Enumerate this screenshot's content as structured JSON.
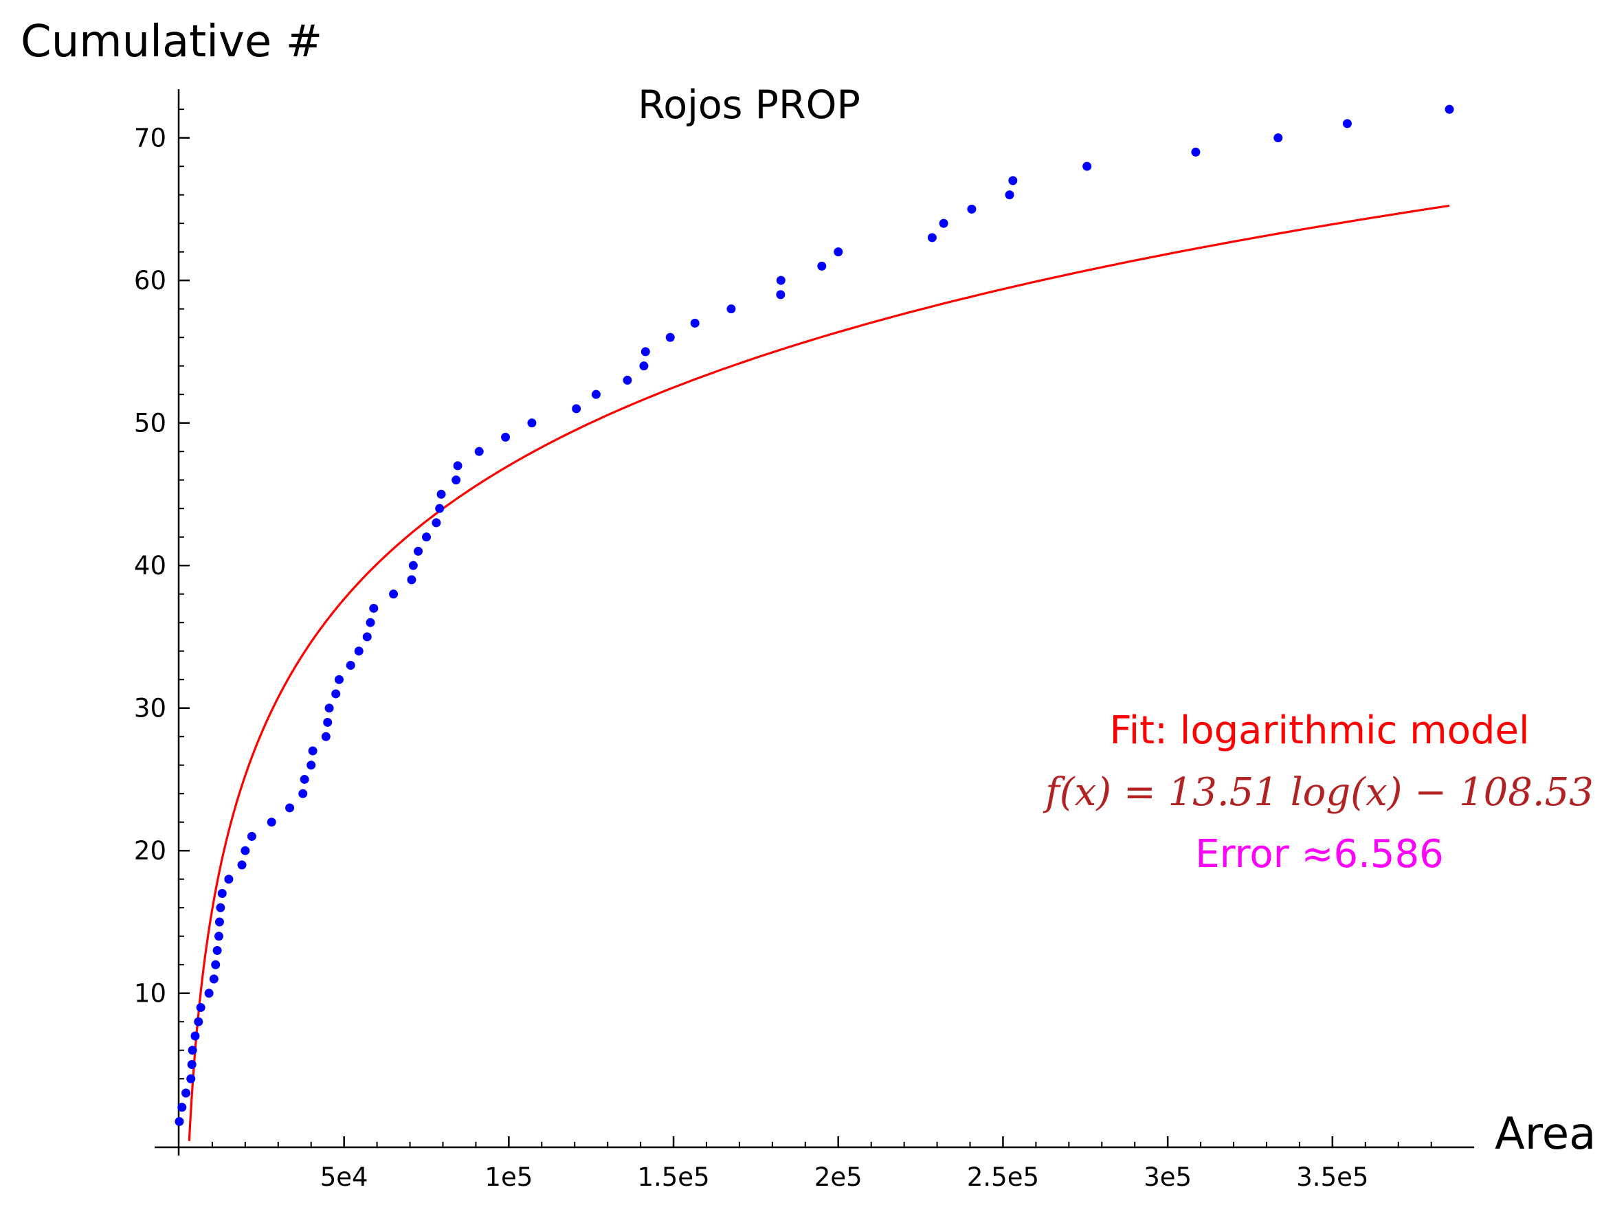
{
  "chart_data": {
    "type": "scatter",
    "title": "Rojos PROP",
    "xlabel": "Area",
    "ylabel": "Cumulative #",
    "xlim": [
      -7500,
      393000
    ],
    "ylim": [
      -1,
      73.5
    ],
    "x_ticks": [
      {
        "value": 50000,
        "label": "5e4"
      },
      {
        "value": 100000,
        "label": "1e5"
      },
      {
        "value": 150000,
        "label": "1.5e5"
      },
      {
        "value": 200000,
        "label": "2e5"
      },
      {
        "value": 250000,
        "label": "2.5e5"
      },
      {
        "value": 300000,
        "label": "3e5"
      },
      {
        "value": 350000,
        "label": "3.5e5"
      }
    ],
    "y_ticks": [
      {
        "value": 10,
        "label": "10"
      },
      {
        "value": 20,
        "label": "20"
      },
      {
        "value": 30,
        "label": "30"
      },
      {
        "value": 40,
        "label": "40"
      },
      {
        "value": 50,
        "label": "50"
      },
      {
        "value": 60,
        "label": "60"
      },
      {
        "value": 70,
        "label": "70"
      }
    ],
    "x_minor_step": 10000,
    "y_minor_step": 2,
    "grid": false,
    "series": [
      {
        "kind": "scatter",
        "color": "#0000ff",
        "points": [
          [
            0,
            1
          ],
          [
            800,
            2
          ],
          [
            2000,
            3
          ],
          [
            3500,
            4
          ],
          [
            3800,
            5
          ],
          [
            4000,
            6
          ],
          [
            4800,
            7
          ],
          [
            5800,
            8
          ],
          [
            6500,
            9
          ],
          [
            9000,
            10
          ],
          [
            10500,
            11
          ],
          [
            11000,
            12
          ],
          [
            11500,
            13
          ],
          [
            12000,
            14
          ],
          [
            12200,
            15
          ],
          [
            12500,
            16
          ],
          [
            13000,
            17
          ],
          [
            15000,
            18
          ],
          [
            19000,
            19
          ],
          [
            20000,
            20
          ],
          [
            22000,
            21
          ],
          [
            28000,
            22
          ],
          [
            33500,
            23
          ],
          [
            37500,
            24
          ],
          [
            38000,
            25
          ],
          [
            40000,
            26
          ],
          [
            40500,
            27
          ],
          [
            44500,
            28
          ],
          [
            45000,
            29
          ],
          [
            45500,
            30
          ],
          [
            47500,
            31
          ],
          [
            48500,
            32
          ],
          [
            52000,
            33
          ],
          [
            54500,
            34
          ],
          [
            57000,
            35
          ],
          [
            58000,
            36
          ],
          [
            59000,
            37
          ],
          [
            65000,
            38
          ],
          [
            70500,
            39
          ],
          [
            71000,
            40
          ],
          [
            72500,
            41
          ],
          [
            75000,
            42
          ],
          [
            78000,
            43
          ],
          [
            79000,
            44
          ],
          [
            79500,
            45
          ],
          [
            84000,
            46
          ],
          [
            84500,
            47
          ],
          [
            91000,
            48
          ],
          [
            99000,
            49
          ],
          [
            107000,
            50
          ],
          [
            120500,
            51
          ],
          [
            126500,
            52
          ],
          [
            136000,
            53
          ],
          [
            141000,
            54
          ],
          [
            141500,
            55
          ],
          [
            149000,
            56
          ],
          [
            156500,
            57
          ],
          [
            167500,
            58
          ],
          [
            182500,
            59
          ],
          [
            182600,
            60
          ],
          [
            195000,
            61
          ],
          [
            200000,
            62
          ],
          [
            228500,
            63
          ],
          [
            232000,
            64
          ],
          [
            240500,
            65
          ],
          [
            252000,
            66
          ],
          [
            253000,
            67
          ],
          [
            275500,
            68
          ],
          [
            308500,
            69
          ],
          [
            333500,
            70
          ],
          [
            354500,
            71
          ],
          [
            385500,
            72
          ]
        ]
      },
      {
        "kind": "line",
        "color": "#ff0000",
        "model": "logarithmic",
        "coefficients": {
          "a": 13.51,
          "b": -108.53
        },
        "x_range": [
          3000,
          385500
        ]
      }
    ],
    "annotations": {
      "fit_label": "Fit: logarithmic model",
      "formula": "f(x) = 13.51 log(x) − 108.53",
      "error": "Error ≈6.586"
    },
    "colors": {
      "points": "#0000ff",
      "fit_line": "#ff0000",
      "fit_label": "#ff0000",
      "formula": "#b22222",
      "error": "#ff00ff",
      "axes": "#000000"
    }
  }
}
